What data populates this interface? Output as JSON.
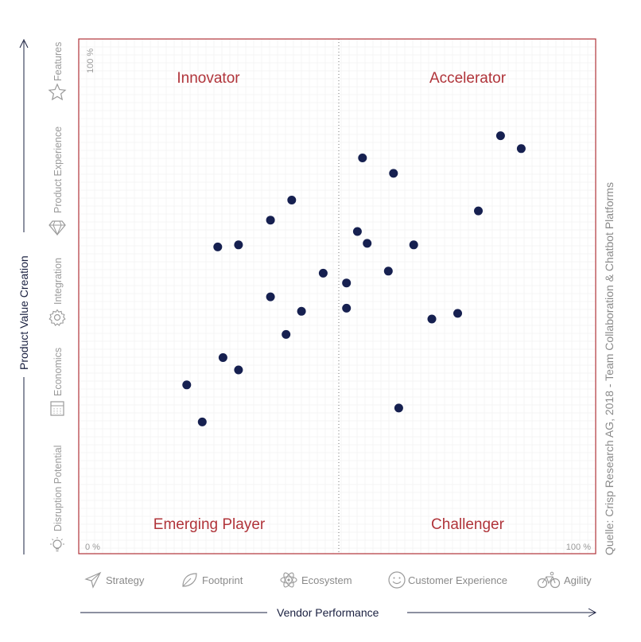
{
  "chart_data": {
    "type": "scatter",
    "xlabel": "Vendor Performance",
    "ylabel": "Product Value Creation",
    "xlim": [
      0,
      100
    ],
    "ylim": [
      0,
      100
    ],
    "grid": true,
    "corner_labels": {
      "y_max": "100 %",
      "x_min": "0 %",
      "x_max": "100 %"
    },
    "quadrants": {
      "top_left": "Innovator",
      "top_right": "Accelerator",
      "bottom_left": "Emerging Player",
      "bottom_right": "Challenger"
    },
    "y_categories": [
      "Disruption Potential",
      "Economics",
      "Integration",
      "Product Experience",
      "Features"
    ],
    "x_categories": [
      "Strategy",
      "Footprint",
      "Ecosystem",
      "Customer Experience",
      "Agility"
    ],
    "points": [
      {
        "x": 81.6,
        "y": 81.2
      },
      {
        "x": 85.6,
        "y": 78.7
      },
      {
        "x": 54.9,
        "y": 76.9
      },
      {
        "x": 60.9,
        "y": 73.9
      },
      {
        "x": 41.2,
        "y": 68.7
      },
      {
        "x": 77.3,
        "y": 66.6
      },
      {
        "x": 37.1,
        "y": 64.8
      },
      {
        "x": 53.9,
        "y": 62.6
      },
      {
        "x": 55.8,
        "y": 60.3
      },
      {
        "x": 64.8,
        "y": 60.0
      },
      {
        "x": 30.9,
        "y": 60.0
      },
      {
        "x": 26.9,
        "y": 59.6
      },
      {
        "x": 59.9,
        "y": 54.9
      },
      {
        "x": 47.3,
        "y": 54.5
      },
      {
        "x": 51.8,
        "y": 52.6
      },
      {
        "x": 37.1,
        "y": 49.9
      },
      {
        "x": 43.1,
        "y": 47.1
      },
      {
        "x": 73.3,
        "y": 46.7
      },
      {
        "x": 51.8,
        "y": 47.7
      },
      {
        "x": 68.3,
        "y": 45.6
      },
      {
        "x": 40.1,
        "y": 42.6
      },
      {
        "x": 27.9,
        "y": 38.1
      },
      {
        "x": 30.9,
        "y": 35.7
      },
      {
        "x": 20.9,
        "y": 32.8
      },
      {
        "x": 61.9,
        "y": 28.3
      },
      {
        "x": 23.9,
        "y": 25.6
      }
    ]
  },
  "source": "Quelle: Crisp Research AG, 2018 - Team Collaboration & Chatbot Platforms",
  "colors": {
    "frame": "#b0343a",
    "point": "#162050",
    "quadrant_text": "#b0343a",
    "axis": "#1a2040"
  }
}
